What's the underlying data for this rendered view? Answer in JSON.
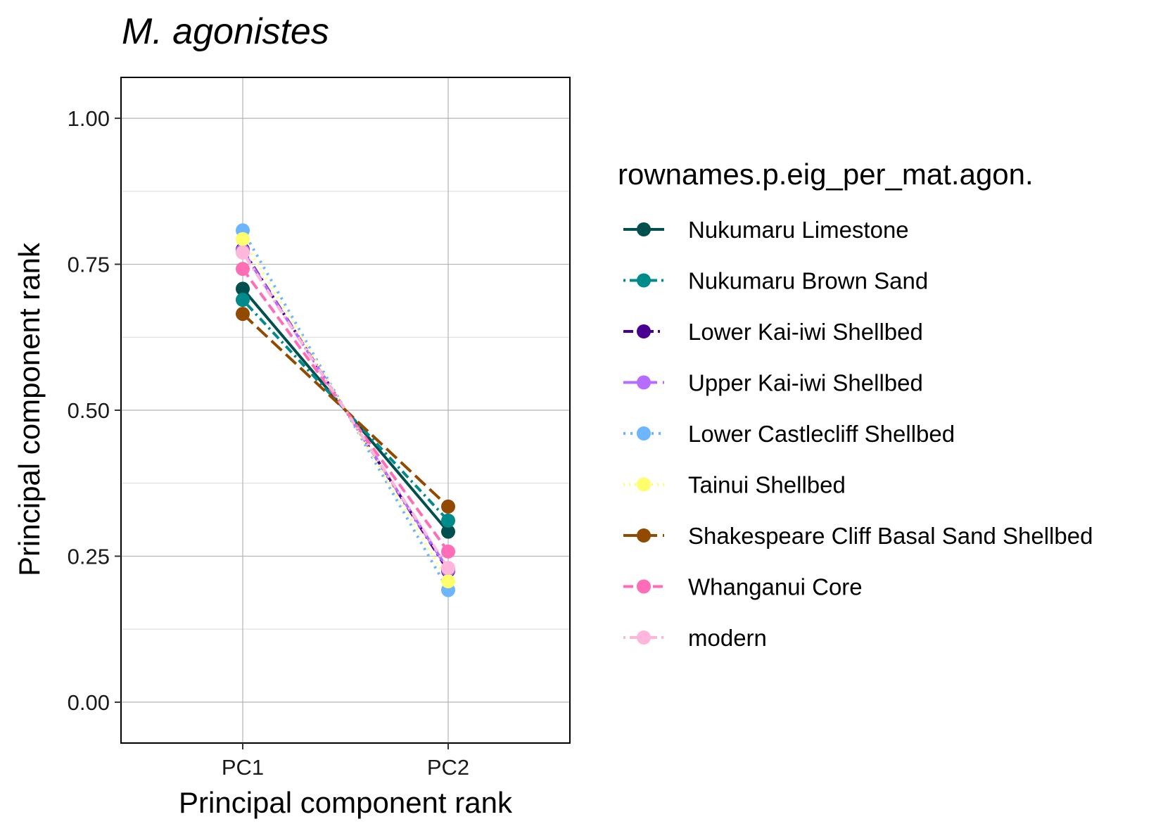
{
  "chart_data": {
    "type": "line",
    "title": "M. agonistes",
    "xlabel": "Principal component rank",
    "ylabel": "Principal component rank",
    "categories": [
      "PC1",
      "PC2"
    ],
    "ylim": [
      -0.07,
      1.07
    ],
    "yticks": [
      "0.00",
      "0.25",
      "0.50",
      "0.75",
      "1.00"
    ],
    "grid": true,
    "legend": {
      "title": "rownames.p.eig_per_mat.agon.",
      "position": "right"
    },
    "series": [
      {
        "name": "Nukumaru Limestone",
        "values": [
          0.708,
          0.292
        ],
        "color": "#00504f",
        "dash": "solid"
      },
      {
        "name": "Nukumaru Brown Sand",
        "values": [
          0.689,
          0.311
        ],
        "color": "#008b8b",
        "dash": "dotted-dash"
      },
      {
        "name": "Lower Kai-iwi Shellbed",
        "values": [
          0.775,
          0.225
        ],
        "color": "#490092",
        "dash": "dash-dot"
      },
      {
        "name": "Upper Kai-iwi Shellbed",
        "values": [
          0.773,
          0.227
        ],
        "color": "#b66dff",
        "dash": "long-dash"
      },
      {
        "name": "Lower Castlecliff Shellbed",
        "values": [
          0.808,
          0.192
        ],
        "color": "#6db6ff",
        "dash": "dotted"
      },
      {
        "name": "Tainui Shellbed",
        "values": [
          0.793,
          0.207
        ],
        "color": "#ffff6d",
        "dash": "dotted-fine"
      },
      {
        "name": "Shakespeare Cliff Basal Sand Shellbed",
        "values": [
          0.665,
          0.335
        ],
        "color": "#924900",
        "dash": "long-dash"
      },
      {
        "name": "Whanganui Core",
        "values": [
          0.742,
          0.258
        ],
        "color": "#ff6db6",
        "dash": "dashed"
      },
      {
        "name": "modern",
        "values": [
          0.77,
          0.23
        ],
        "color": "#ffb6db",
        "dash": "dotted-dash"
      }
    ]
  }
}
